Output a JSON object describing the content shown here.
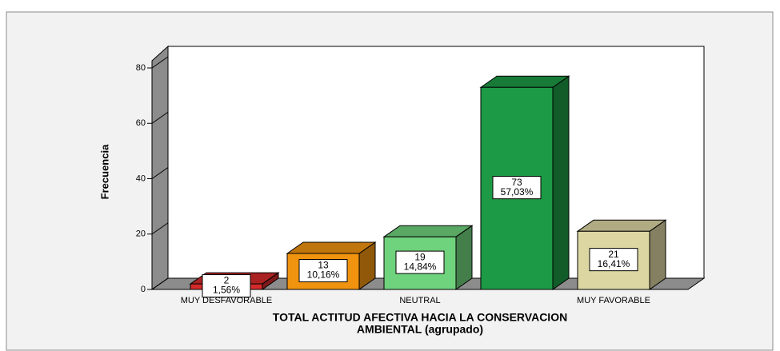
{
  "chart_data": {
    "type": "bar3d",
    "ylabel": "Frecuencia",
    "xlabel_lines": [
      "TOTAL ACTITUD AFECTIVA HACIA LA CONSERVACION",
      "AMBIENTAL (agrupado)"
    ],
    "categories": [
      "MUY DESFAVORABLE",
      null,
      "NEUTRAL",
      null,
      "MUY FAVORABLE"
    ],
    "values": [
      2,
      13,
      19,
      73,
      21
    ],
    "percentages": [
      1.56,
      10.16,
      14.84,
      57.03,
      16.41
    ],
    "percentage_labels": [
      "1,56%",
      "10,16%",
      "14,84%",
      "57,03%",
      "16,41%"
    ],
    "colors": [
      "#d42a2a",
      "#f0930f",
      "#6fd27d",
      "#1d9a45",
      "#dcd6a2"
    ],
    "ylim": [
      0,
      80
    ],
    "yticks": [
      0,
      20,
      40,
      60,
      80
    ]
  }
}
